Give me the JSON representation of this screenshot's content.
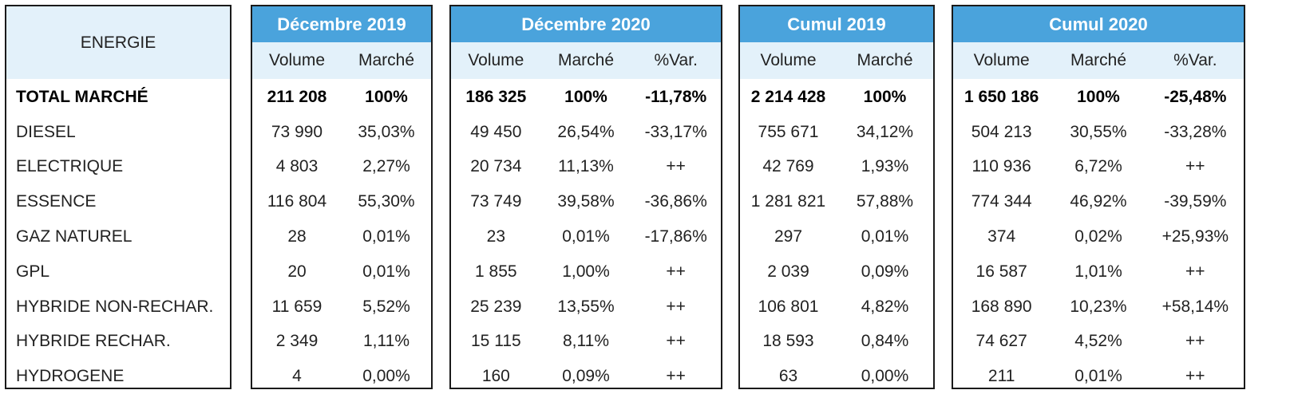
{
  "energie": {
    "header": "ENERGIE",
    "rows": [
      "TOTAL MARCHÉ",
      "DIESEL",
      "ELECTRIQUE",
      "ESSENCE",
      "GAZ NATUREL",
      "GPL",
      "HYBRIDE NON-RECHAR.",
      "HYBRIDE RECHAR.",
      "HYDROGENE"
    ]
  },
  "dec2019": {
    "title": "Décembre 2019",
    "cols": [
      "Volume",
      "Marché"
    ],
    "rows": [
      [
        "211 208",
        "100%"
      ],
      [
        "73 990",
        "35,03%"
      ],
      [
        "4 803",
        "2,27%"
      ],
      [
        "116 804",
        "55,30%"
      ],
      [
        "28",
        "0,01%"
      ],
      [
        "20",
        "0,01%"
      ],
      [
        "11 659",
        "5,52%"
      ],
      [
        "2 349",
        "1,11%"
      ],
      [
        "4",
        "0,00%"
      ]
    ]
  },
  "dec2020": {
    "title": "Décembre 2020",
    "cols": [
      "Volume",
      "Marché",
      "%Var."
    ],
    "rows": [
      [
        "186 325",
        "100%",
        "-11,78%"
      ],
      [
        "49 450",
        "26,54%",
        "-33,17%"
      ],
      [
        "20 734",
        "11,13%",
        "++"
      ],
      [
        "73 749",
        "39,58%",
        "-36,86%"
      ],
      [
        "23",
        "0,01%",
        "-17,86%"
      ],
      [
        "1 855",
        "1,00%",
        "++"
      ],
      [
        "25 239",
        "13,55%",
        "++"
      ],
      [
        "15 115",
        "8,11%",
        "++"
      ],
      [
        "160",
        "0,09%",
        "++"
      ]
    ]
  },
  "cumul2019": {
    "title": "Cumul 2019",
    "cols": [
      "Volume",
      "Marché"
    ],
    "rows": [
      [
        "2 214 428",
        "100%"
      ],
      [
        "755 671",
        "34,12%"
      ],
      [
        "42 769",
        "1,93%"
      ],
      [
        "1 281 821",
        "57,88%"
      ],
      [
        "297",
        "0,01%"
      ],
      [
        "2 039",
        "0,09%"
      ],
      [
        "106 801",
        "4,82%"
      ],
      [
        "18 593",
        "0,84%"
      ],
      [
        "63",
        "0,00%"
      ]
    ]
  },
  "cumul2020": {
    "title": "Cumul 2020",
    "cols": [
      "Volume",
      "Marché",
      "%Var."
    ],
    "rows": [
      [
        "1 650 186",
        "100%",
        "-25,48%"
      ],
      [
        "504 213",
        "30,55%",
        "-33,28%"
      ],
      [
        "110 936",
        "6,72%",
        "++"
      ],
      [
        "774 344",
        "46,92%",
        "-39,59%"
      ],
      [
        "374",
        "0,02%",
        "+25,93%"
      ],
      [
        "16 587",
        "1,01%",
        "++"
      ],
      [
        "168 890",
        "10,23%",
        "+58,14%"
      ],
      [
        "74 627",
        "4,52%",
        "++"
      ],
      [
        "211",
        "0,01%",
        "++"
      ]
    ]
  },
  "colors": {
    "header_blue": "#4aa3dc",
    "subheader_light": "#e3f1fa"
  }
}
